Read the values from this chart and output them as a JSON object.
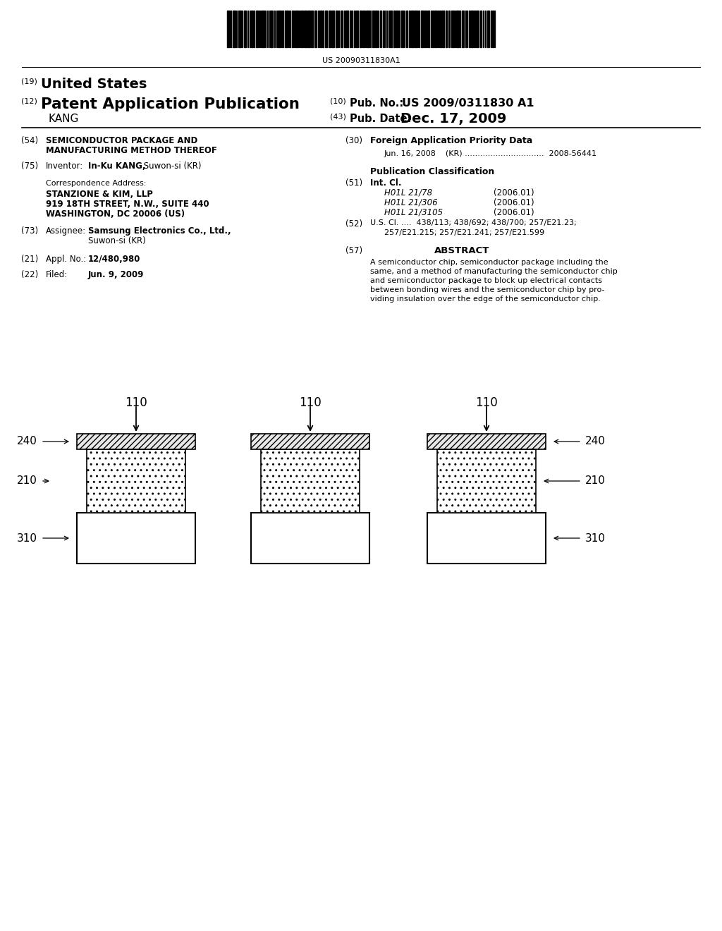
{
  "bg_color": "#ffffff",
  "barcode_text": "US 20090311830A1",
  "field54_text1": "SEMICONDUCTOR PACKAGE AND",
  "field54_text2": "MANUFACTURING METHOD THEREOF",
  "field30_title": "Foreign Application Priority Data",
  "field30_line": "Jun. 16, 2008    (KR) ...............................  2008-56441",
  "field75_inventor": "In-Ku KANG, Suwon-si (KR)",
  "pub_class_title": "Publication Classification",
  "field51_class1": "H01L 21/78",
  "field51_year1": "(2006.01)",
  "field51_class2": "H01L 21/306",
  "field51_year2": "(2006.01)",
  "field51_class3": "H01L 21/3105",
  "field51_year3": "(2006.01)",
  "field52_value1": "U.S. Cl. ....  438/113; 438/692; 438/700; 257/E21.23;",
  "field52_value2": "257/E21.215; 257/E21.241; 257/E21.599",
  "corr_title": "Correspondence Address:",
  "corr_name": "STANZIONE & KIM, LLP",
  "corr_addr1": "919 18TH STREET, N.W., SUITE 440",
  "corr_addr2": "WASHINGTON, DC 20006 (US)",
  "field73_value1": "Samsung Electronics Co., Ltd.,",
  "field73_value2": "Suwon-si (KR)",
  "field57_title": "ABSTRACT",
  "abstract_line1": "A semiconductor chip, semiconductor package including the",
  "abstract_line2": "same, and a method of manufacturing the semiconductor chip",
  "abstract_line3": "and semiconductor package to block up electrical contacts",
  "abstract_line4": "between bonding wires and the semiconductor chip by pro-",
  "abstract_line5": "viding insulation over the edge of the semiconductor chip.",
  "field21_value": "12/480,980",
  "field22_value": "Jun. 9, 2009"
}
